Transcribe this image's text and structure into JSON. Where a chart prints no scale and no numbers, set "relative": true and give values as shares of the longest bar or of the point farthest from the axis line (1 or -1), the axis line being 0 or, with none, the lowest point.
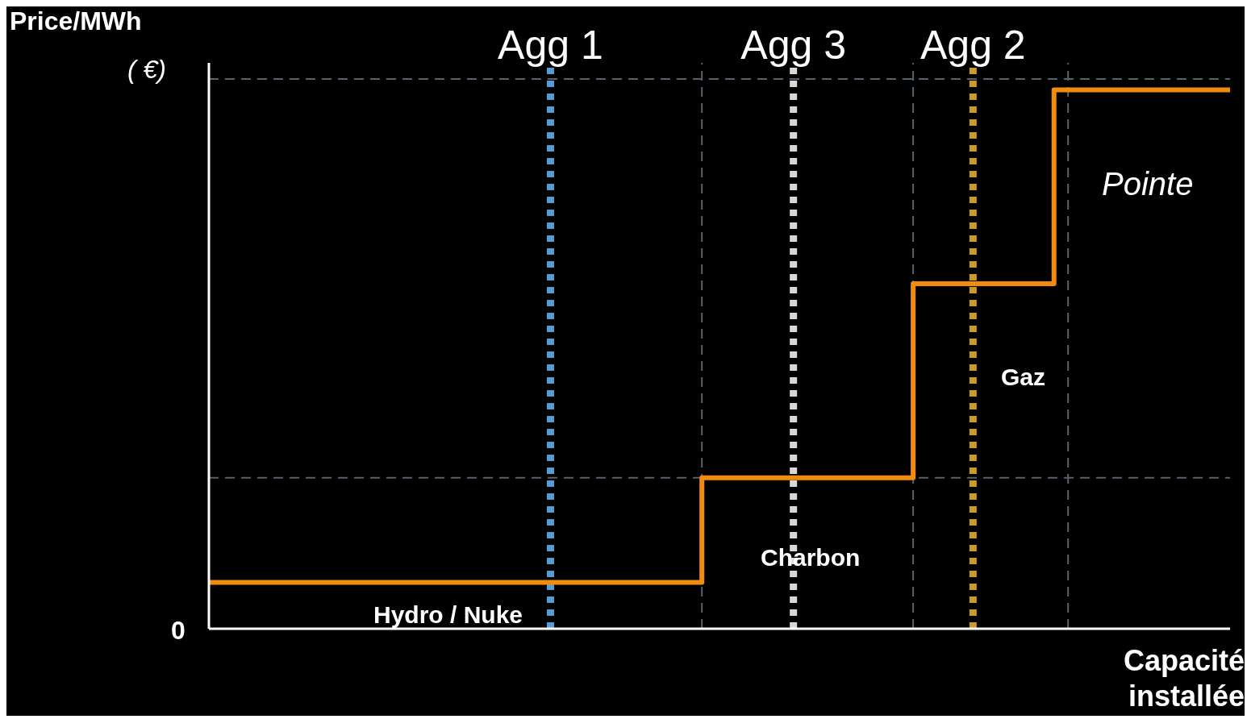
{
  "chart_data": {
    "type": "step",
    "relative": true,
    "xlabel": "Capacité installée",
    "ylabel": "Price/MWh",
    "categories": [
      null,
      null,
      null,
      null,
      null,
      null,
      null,
      null,
      null,
      null,
      null,
      null,
      null,
      null,
      null,
      null,
      null,
      null,
      null,
      null,
      null,
      null,
      null,
      null,
      null,
      null,
      null,
      null,
      null,
      null
    ],
    "series": [
      {
        "color": "#f28c0f",
        "values": [
          0.086,
          0.086,
          0.086,
          0.086,
          0.086,
          0.086,
          0.086,
          0.086,
          0.086,
          0.086,
          0.086,
          0.086,
          0.086,
          0.086,
          0.28,
          0.28,
          0.28,
          0.28,
          0.28,
          0.28,
          0.64,
          0.64,
          0.64,
          0.64,
          1,
          1,
          1,
          1,
          1,
          1
        ]
      }
    ],
    "line_style": "solid",
    "marker": "none",
    "grid": false,
    "legend": false,
    "ref_lines": [
      {
        "axis": "y",
        "value": 0.28,
        "color": "#56626e",
        "line_style": "dashed"
      },
      {
        "axis": "y",
        "value": 1.02,
        "color": "#56626e",
        "line_style": "dashed"
      }
    ],
    "annotations": [
      "( €)",
      "0",
      "Hydro / Nuke",
      "Charbon",
      "Gaz",
      "Pointe",
      "Agg 1",
      "Agg 3",
      "Agg 2"
    ]
  }
}
